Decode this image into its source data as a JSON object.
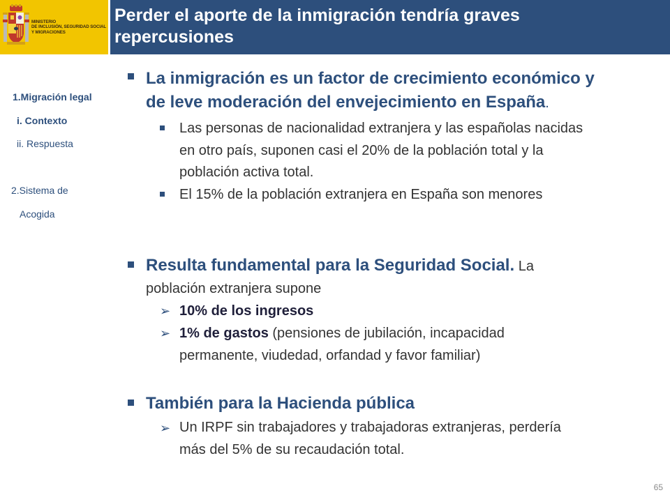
{
  "header": {
    "ministry_lines": [
      "MINISTERIO",
      "DE INCLUSIÓN, SEGURIDAD SOCIAL",
      "Y MIGRACIONES"
    ],
    "title_line1": "Perder el aporte de la inmigración tendría graves",
    "title_line2": "repercusiones"
  },
  "nav": {
    "item1": "1.Migración legal",
    "item1a": "i.  Contexto",
    "item1b": "ii. Respuesta",
    "item2_line1": "2.Sistema de",
    "item2_line2": "Acogida"
  },
  "content": {
    "b1_line1": "La inmigración es un factor de crecimiento económico y",
    "b1_line2": "de leve moderación del envejecimiento en España",
    "b1_period": ".",
    "b1_sub1_l1": "Las personas de nacionalidad extranjera y las españolas nacidas",
    "b1_sub1_l2": "en otro país, suponen casi el 20% de la población total y la",
    "b1_sub1_l3": "población activa total.",
    "b1_sub2": "El 15% de la población extranjera en España son menores",
    "b2_bold": "Resulta fundamental para la Seguridad Social.",
    "b2_rest": " La",
    "b2_line2": "población extranjera supone",
    "b2_sub1": "10% de los ingresos",
    "b2_sub2_bold": "1% de gastos",
    "b2_sub2_rest": " (pensiones de jubilación, incapacidad",
    "b2_sub2_l2": "permanente, viudedad, orfandad y favor familiar)",
    "b3": "También para la Hacienda pública",
    "b3_sub1_l1": "Un IRPF sin trabajadores y trabajadoras extranjeras, perdería",
    "b3_sub1_l2": "más del 5% de su recaudación total."
  },
  "page_number": "65",
  "colors": {
    "navy": "#2d4f7c",
    "yellow": "#f2c500"
  },
  "icons": {
    "logo": "spain-coat-of-arms-icon",
    "bullet_square": "square-bullet-icon",
    "bullet_arrow": "arrow-bullet-icon"
  }
}
